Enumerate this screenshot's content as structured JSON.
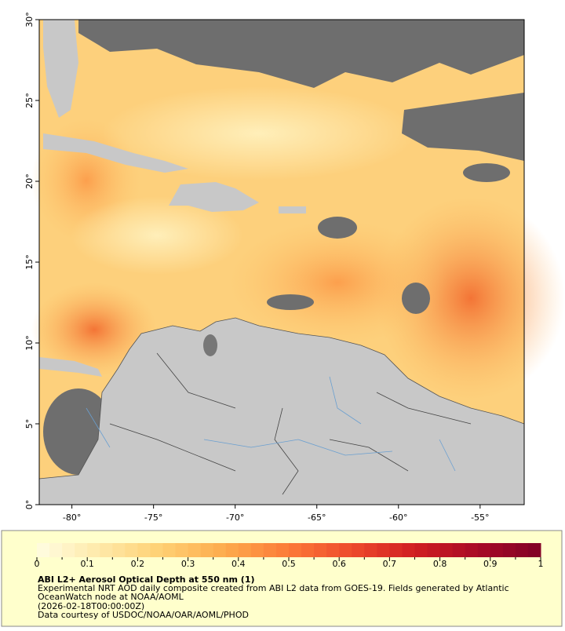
{
  "map": {
    "xlim": [
      -82,
      -52.3
    ],
    "ylim": [
      0,
      30
    ],
    "xticks": [
      {
        "value": -80,
        "label": "-80°"
      },
      {
        "value": -75,
        "label": "-75°"
      },
      {
        "value": -70,
        "label": "-70°"
      },
      {
        "value": -65,
        "label": "-65°"
      },
      {
        "value": -60,
        "label": "-60°"
      },
      {
        "value": -55,
        "label": "-55°"
      }
    ],
    "yticks": [
      {
        "value": 0,
        "label": "0°"
      },
      {
        "value": 5,
        "label": "5°"
      },
      {
        "value": 10,
        "label": "10°"
      },
      {
        "value": 15,
        "label": "15°"
      },
      {
        "value": 20,
        "label": "20°"
      },
      {
        "value": 25,
        "label": "25°"
      },
      {
        "value": 30,
        "label": "30°"
      }
    ]
  },
  "colorbar": {
    "lim": [
      0,
      1
    ],
    "ticks": [
      0,
      0.1,
      0.2,
      0.3,
      0.4,
      0.5,
      0.6,
      0.7,
      0.8,
      0.9,
      1
    ],
    "minor_ticks": [
      0.05,
      0.15,
      0.25,
      0.35,
      0.45,
      0.55,
      0.65,
      0.75,
      0.85,
      0.95
    ],
    "colormap": [
      "#fffde2",
      "#fee9a8",
      "#fecf72",
      "#fdaa4c",
      "#fc7a38",
      "#ee4a2c",
      "#d01e22",
      "#a80a26",
      "#800026"
    ]
  },
  "legend": {
    "title": "ABI L2+ Aerosol Optical Depth at 550 nm (1)",
    "description": [
      "Experimental NRT AOD daily composite created from ABI L2 data from GOES-19. Fields generated by Atlantic",
      "OceanWatch node at NOAA/AOML"
    ],
    "time": "(2026-02-18T00:00:00Z)",
    "credit": "Data courtesy of USDOC/NOAA/OAR/AOML/PHOD"
  }
}
